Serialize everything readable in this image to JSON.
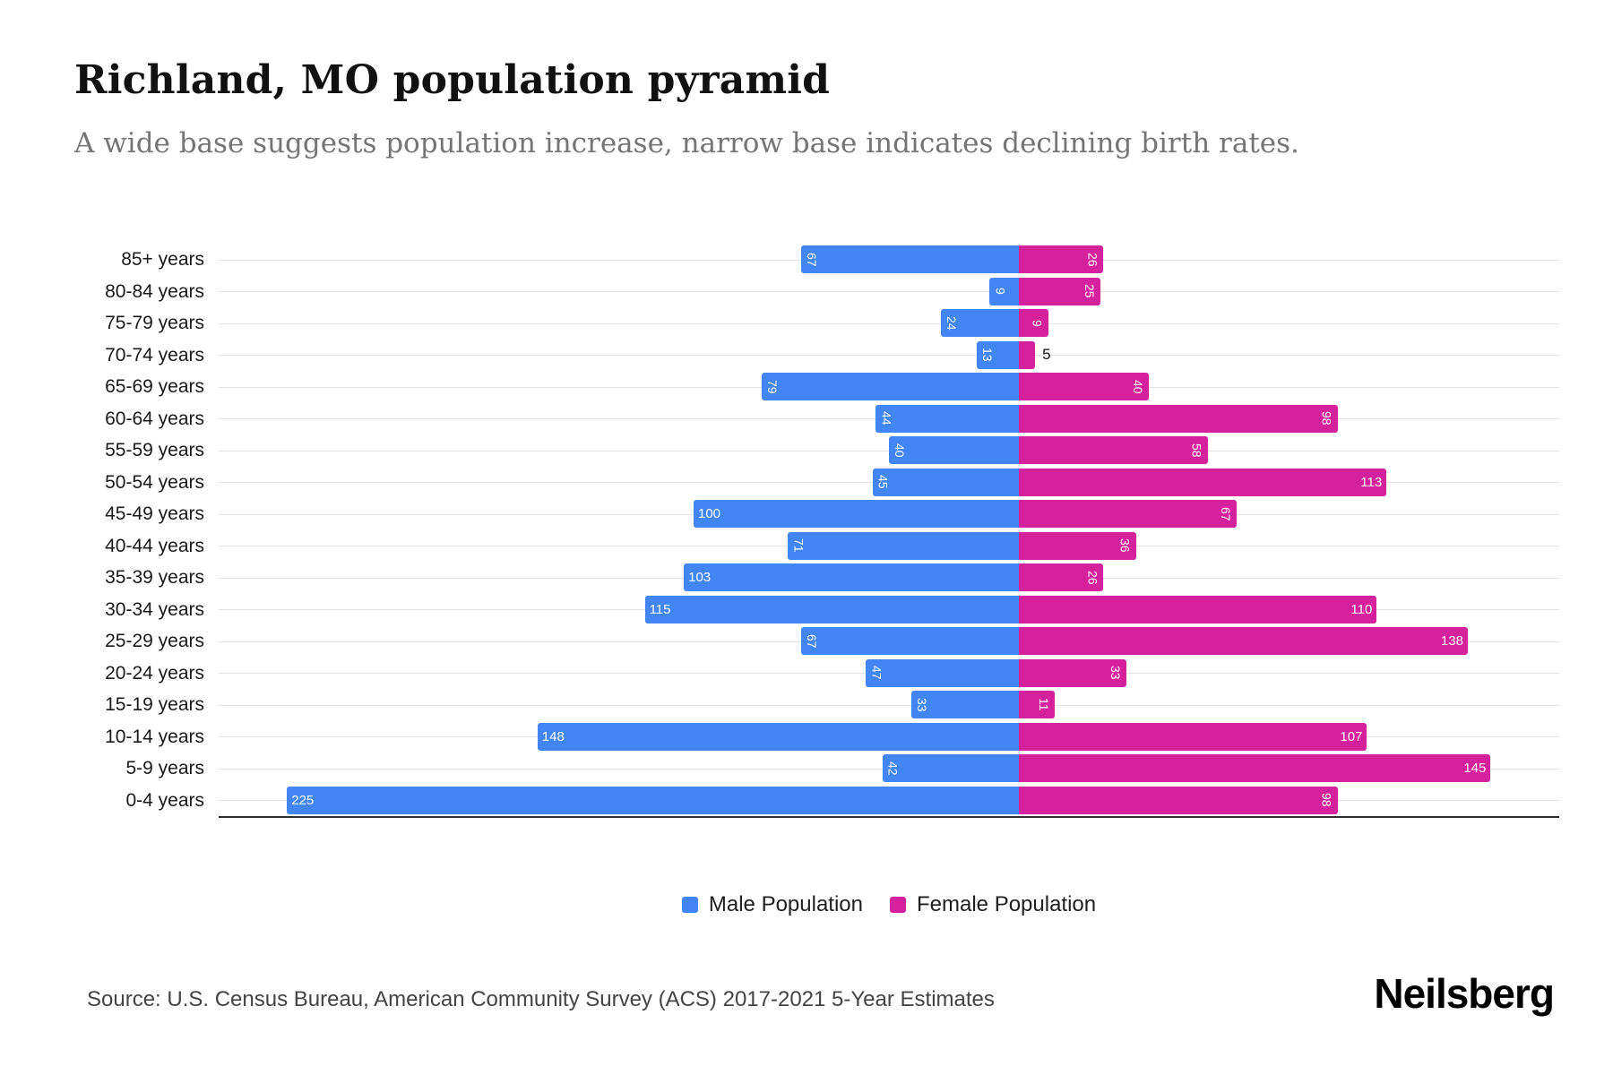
{
  "page": {
    "title": "Richland, MO population pyramid",
    "subtitle": "A wide base suggests population increase, narrow base indicates declining birth rates.",
    "source": "Source: U.S. Census Bureau, American Community Survey (ACS) 2017-2021 5-Year Estimates",
    "logo": "Neilsberg"
  },
  "legend": {
    "male": "Male Population",
    "female": "Female Population"
  },
  "colors": {
    "male": "#4285F4",
    "female": "#D6219C",
    "grid": "#E3E3E3",
    "axis": "#2F2F2F",
    "value_label": "#FFFFFF"
  },
  "chart_data": {
    "type": "bar",
    "variant": "population-pyramid",
    "orientation": "horizontal",
    "title": "Richland, MO population pyramid",
    "subtitle": "A wide base suggests population increase, narrow base indicates declining birth rates.",
    "categories": [
      "85+ years",
      "80-84 years",
      "75-79 years",
      "70-74 years",
      "65-69 years",
      "60-64 years",
      "55-59 years",
      "50-54 years",
      "45-49 years",
      "40-44 years",
      "35-39 years",
      "30-34 years",
      "25-29 years",
      "20-24 years",
      "15-19 years",
      "10-14 years",
      "5-9 years",
      "0-4 years"
    ],
    "series": [
      {
        "name": "Male Population",
        "values": [
          67,
          9,
          24,
          13,
          79,
          44,
          40,
          45,
          100,
          71,
          103,
          115,
          67,
          47,
          33,
          148,
          42,
          225
        ]
      },
      {
        "name": "Female Population",
        "values": [
          26,
          25,
          9,
          5,
          40,
          98,
          58,
          113,
          67,
          36,
          26,
          110,
          138,
          33,
          11,
          107,
          145,
          98
        ]
      }
    ],
    "legend_position": "bottom",
    "grid": true,
    "value_labels": "inside-bar-ends, rotated when value < 100, outside in black when bar too small",
    "xlim": [
      -240,
      240
    ]
  }
}
